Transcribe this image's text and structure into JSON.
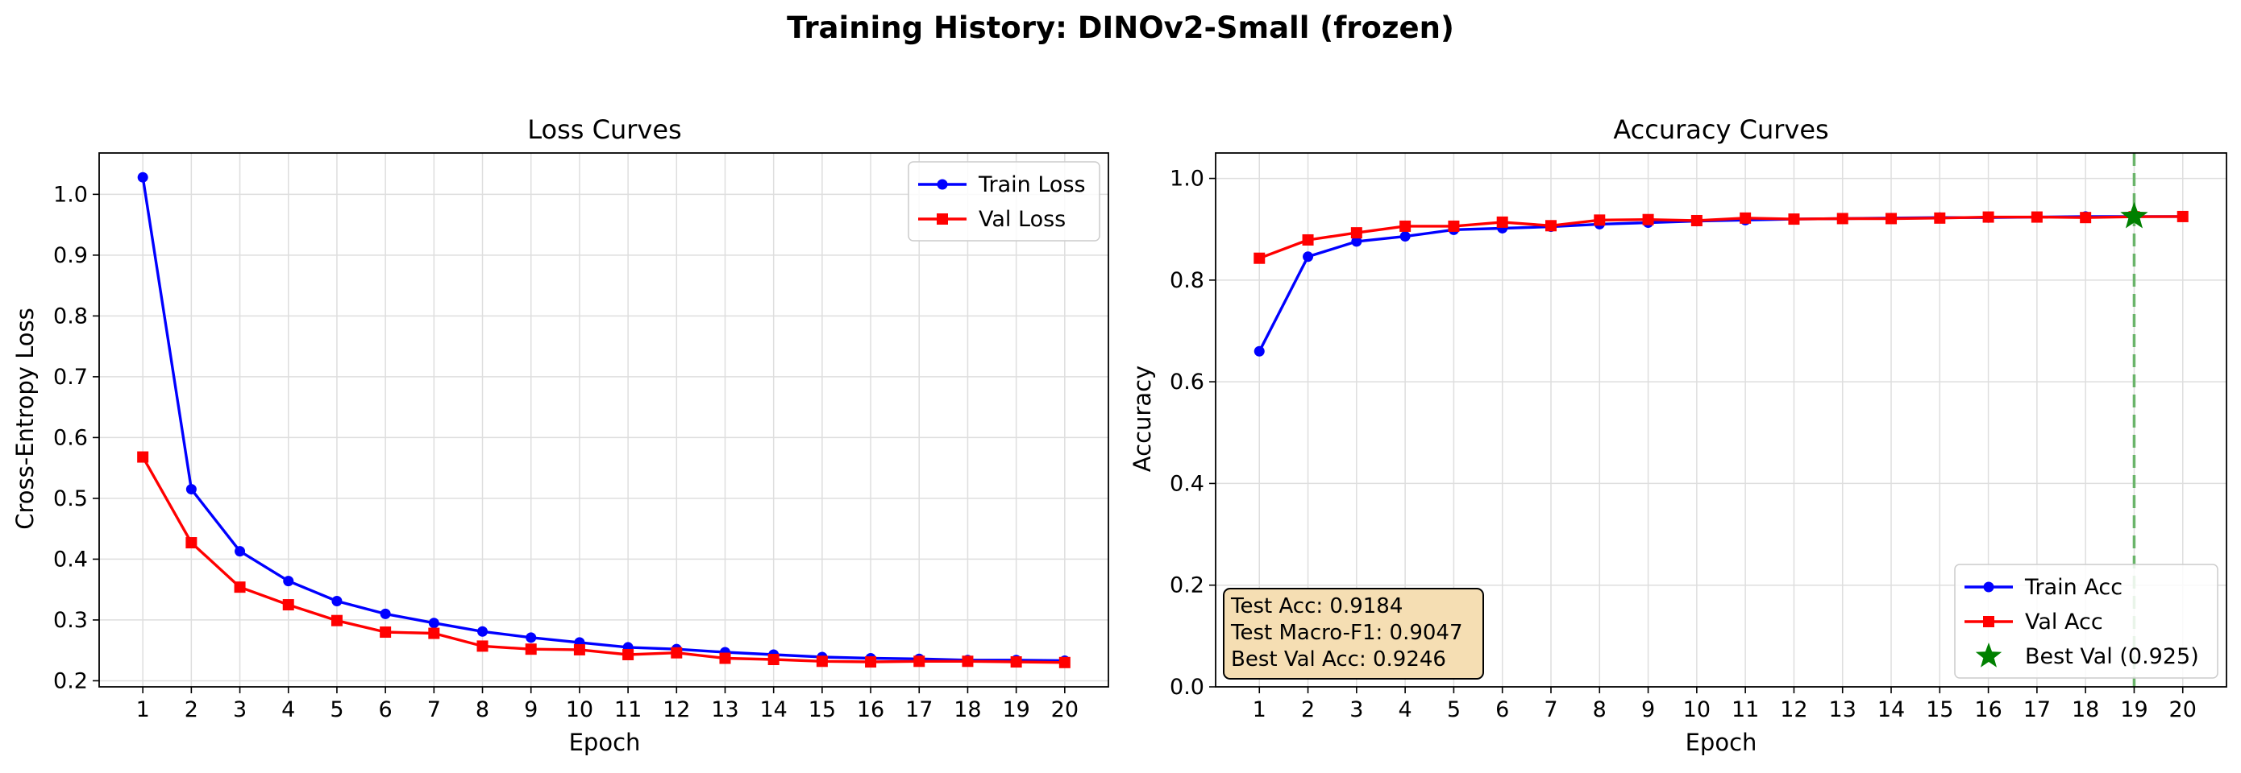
{
  "figure_title": "Training History: DINOv2-Small (frozen)",
  "chart_data": [
    {
      "type": "line",
      "title": "Loss Curves",
      "xlabel": "Epoch",
      "ylabel": "Cross-Entropy Loss",
      "xlim": [
        0.1,
        20.9
      ],
      "ylim": [
        0.19,
        1.068
      ],
      "x": [
        1,
        2,
        3,
        4,
        5,
        6,
        7,
        8,
        9,
        10,
        11,
        12,
        13,
        14,
        15,
        16,
        17,
        18,
        19,
        20
      ],
      "x_tick_labels": [
        "1",
        "2",
        "3",
        "4",
        "5",
        "6",
        "7",
        "8",
        "9",
        "10",
        "11",
        "12",
        "13",
        "14",
        "15",
        "16",
        "17",
        "18",
        "19",
        "20"
      ],
      "y_ticks": [
        0.2,
        0.3,
        0.4,
        0.5,
        0.6,
        0.7,
        0.8,
        0.9,
        1.0
      ],
      "y_tick_labels": [
        "0.2",
        "0.3",
        "0.4",
        "0.5",
        "0.6",
        "0.7",
        "0.8",
        "0.9",
        "1.0"
      ],
      "grid": true,
      "legend": "top-right",
      "series": [
        {
          "name": "Train Loss",
          "color": "#0000ff",
          "marker": "circle",
          "values": [
            1.028,
            0.515,
            0.413,
            0.364,
            0.331,
            0.31,
            0.295,
            0.281,
            0.271,
            0.263,
            0.255,
            0.252,
            0.247,
            0.243,
            0.239,
            0.237,
            0.236,
            0.234,
            0.234,
            0.233
          ]
        },
        {
          "name": "Val Loss",
          "color": "#ff0000",
          "marker": "square",
          "values": [
            0.568,
            0.427,
            0.354,
            0.325,
            0.299,
            0.28,
            0.278,
            0.257,
            0.252,
            0.251,
            0.243,
            0.246,
            0.237,
            0.235,
            0.232,
            0.231,
            0.232,
            0.232,
            0.231,
            0.23
          ]
        }
      ]
    },
    {
      "type": "line",
      "title": "Accuracy Curves",
      "xlabel": "Epoch",
      "ylabel": "Accuracy",
      "xlim": [
        0.1,
        20.9
      ],
      "ylim": [
        0.0,
        1.05
      ],
      "x": [
        1,
        2,
        3,
        4,
        5,
        6,
        7,
        8,
        9,
        10,
        11,
        12,
        13,
        14,
        15,
        16,
        17,
        18,
        19,
        20
      ],
      "x_tick_labels": [
        "1",
        "2",
        "3",
        "4",
        "5",
        "6",
        "7",
        "8",
        "9",
        "10",
        "11",
        "12",
        "13",
        "14",
        "15",
        "16",
        "17",
        "18",
        "19",
        "20"
      ],
      "y_ticks": [
        0.0,
        0.2,
        0.4,
        0.6,
        0.8,
        1.0
      ],
      "y_tick_labels": [
        "0.0",
        "0.2",
        "0.4",
        "0.6",
        "0.8",
        "1.0"
      ],
      "grid": true,
      "legend": "bottom-right",
      "series": [
        {
          "name": "Train Acc",
          "color": "#0000ff",
          "marker": "circle",
          "values": [
            0.66,
            0.846,
            0.876,
            0.886,
            0.899,
            0.902,
            0.905,
            0.91,
            0.913,
            0.916,
            0.918,
            0.92,
            0.921,
            0.922,
            0.923,
            0.923,
            0.924,
            0.925,
            0.925,
            0.925
          ]
        },
        {
          "name": "Val Acc",
          "color": "#ff0000",
          "marker": "square",
          "values": [
            0.843,
            0.879,
            0.893,
            0.906,
            0.906,
            0.914,
            0.907,
            0.918,
            0.919,
            0.917,
            0.922,
            0.92,
            0.921,
            0.921,
            0.922,
            0.924,
            0.924,
            0.923,
            0.9246,
            0.925
          ]
        }
      ],
      "best_marker": {
        "name": "Best Val (0.925)",
        "x": 19,
        "y": 0.925,
        "color": "#008000",
        "line_color": "#6ab46a"
      },
      "annotation": {
        "lines": [
          "Test Acc: 0.9184",
          "Test Macro-F1: 0.9047",
          "Best Val Acc: 0.9246"
        ],
        "fill": "#f5deb3"
      }
    }
  ]
}
